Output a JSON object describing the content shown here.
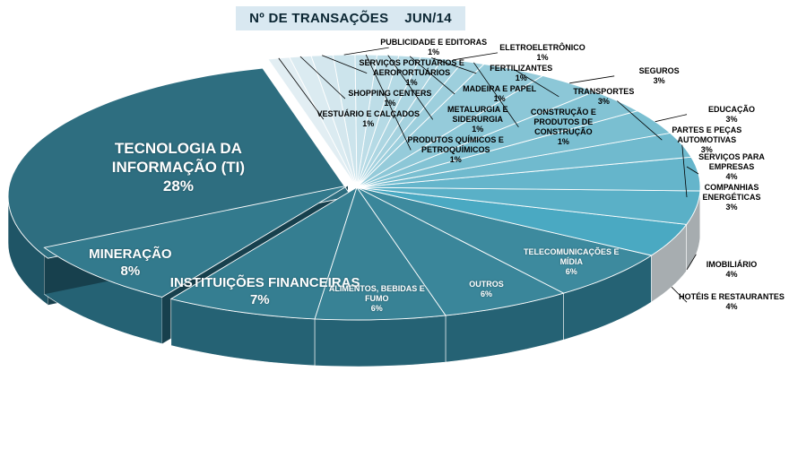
{
  "chart_data": {
    "type": "pie",
    "title": "Nº DE TRANSAÇÕES    JUN/14",
    "slices": [
      {
        "label": "TECNOLOGIA DA INFORMAÇÃO (TI)",
        "value_text": "28%",
        "value": 28
      },
      {
        "label": "MINERAÇÃO",
        "value_text": "8%",
        "value": 8
      },
      {
        "label": "INSTITUIÇÕES FINANCEIRAS",
        "value_text": "7%",
        "value": 7
      },
      {
        "label": "ALIMENTOS, BEBIDAS E FUMO",
        "value_text": "6%",
        "value": 6
      },
      {
        "label": "OUTROS",
        "value_text": "6%",
        "value": 6
      },
      {
        "label": "TELECOMUNICAÇÕES E MÍDIA",
        "value_text": "6%",
        "value": 6
      },
      {
        "label": "HOTÉIS E RESTAURANTES",
        "value_text": "4%",
        "value": 4
      },
      {
        "label": "IMOBILIÁRIO",
        "value_text": "4%",
        "value": 4
      },
      {
        "label": "SERVIÇOS PARA EMPRESAS",
        "value_text": "4%",
        "value": 4
      },
      {
        "label": "COMPANHIAS ENERGÉTICAS",
        "value_text": "3%",
        "value": 3
      },
      {
        "label": "EDUCAÇÃO",
        "value_text": "3%",
        "value": 3
      },
      {
        "label": "PARTES E PEÇAS AUTOMOTIVAS",
        "value_text": "3%",
        "value": 3
      },
      {
        "label": "SEGUROS",
        "value_text": "3%",
        "value": 3
      },
      {
        "label": "TRANSPORTES",
        "value_text": "3%",
        "value": 3
      },
      {
        "label": "CONSTRUÇÃO E PRODUTOS DE CONSTRUÇÃO",
        "value_text": "1%",
        "value": 1
      },
      {
        "label": "ELETROELETRÔNICO",
        "value_text": "1%",
        "value": 1
      },
      {
        "label": "FERTILIZANTES",
        "value_text": "1%",
        "value": 1
      },
      {
        "label": "MADEIRA E PAPEL",
        "value_text": "1%",
        "value": 1
      },
      {
        "label": "METALURGIA E SIDERURGIA",
        "value_text": "1%",
        "value": 1
      },
      {
        "label": "PRODUTOS QUÍMICOS E PETROQUÍMICOS",
        "value_text": "1%",
        "value": 1
      },
      {
        "label": "PUBLICIDADE E EDITORAS",
        "value_text": "1%",
        "value": 1
      },
      {
        "label": "SERVIÇOS PORTUÁRIOS E AEROPORTUÁRIOS",
        "value_text": "1%",
        "value": 1
      },
      {
        "label": "SHOPPING CENTERS",
        "value_text": "1%",
        "value": 1
      },
      {
        "label": "VESTUÁRIO E CALÇADOS",
        "value_text": "1%",
        "value": 1
      }
    ],
    "colors": {
      "it": "#2e6e80",
      "top_dark": "#337a8d",
      "top_light": "#e2eef3",
      "side_dark": "#1f5566",
      "side_gray": "#8e9498"
    }
  }
}
